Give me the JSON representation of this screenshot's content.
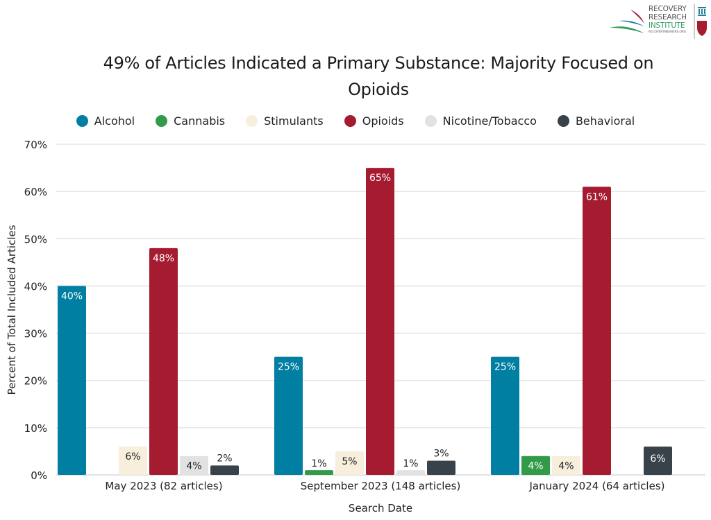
{
  "logo": {
    "line1": "RECOVERY",
    "line2": "RESEARCH",
    "line3": "INSTITUTE",
    "url": "RECOVERYANSWERS.ORG"
  },
  "chart_data": {
    "type": "bar",
    "title": "49% of Articles Indicated a Primary Substance: Majority Focused on Opioids",
    "title_lines": [
      "49% of Articles Indicated a Primary Substance: Majority Focused on",
      "Opioids"
    ],
    "xlabel": "Search Date",
    "ylabel": "Percent of Total Included Articles",
    "ylim": [
      0,
      70
    ],
    "yticks": [
      0,
      10,
      20,
      30,
      40,
      50,
      60,
      70
    ],
    "ytick_labels": [
      "0%",
      "10%",
      "20%",
      "30%",
      "40%",
      "50%",
      "60%",
      "70%"
    ],
    "grid": true,
    "legend_position": "top",
    "categories": [
      "May 2023 (82 articles)",
      "September 2023 (148 articles)",
      "January 2024 (64 articles)"
    ],
    "series": [
      {
        "name": "Alcohol",
        "color": "#007fa3",
        "label_color": "#ffffff",
        "values": [
          40,
          25,
          25
        ],
        "labels": [
          "40%",
          "25%",
          "25%"
        ]
      },
      {
        "name": "Cannabis",
        "color": "#339a4a",
        "label_color": "#222222",
        "values": [
          0,
          1,
          4
        ],
        "labels": [
          "",
          "1%",
          "4%"
        ]
      },
      {
        "name": "Stimulants",
        "color": "#f7efdc",
        "label_color": "#222222",
        "values": [
          6,
          5,
          4
        ],
        "labels": [
          "6%",
          "5%",
          "4%"
        ]
      },
      {
        "name": "Opioids",
        "color": "#a51c30",
        "label_color": "#ffffff",
        "values": [
          48,
          65,
          61
        ],
        "labels": [
          "48%",
          "65%",
          "61%"
        ]
      },
      {
        "name": "Nicotine/Tobacco",
        "color": "#e2e2e2",
        "label_color": "#222222",
        "values": [
          4,
          1,
          0
        ],
        "labels": [
          "4%",
          "1%",
          ""
        ]
      },
      {
        "name": "Behavioral",
        "color": "#37424a",
        "label_color": "#222222",
        "values": [
          2,
          3,
          6
        ],
        "labels": [
          "2%",
          "3%",
          "6%"
        ]
      }
    ]
  }
}
